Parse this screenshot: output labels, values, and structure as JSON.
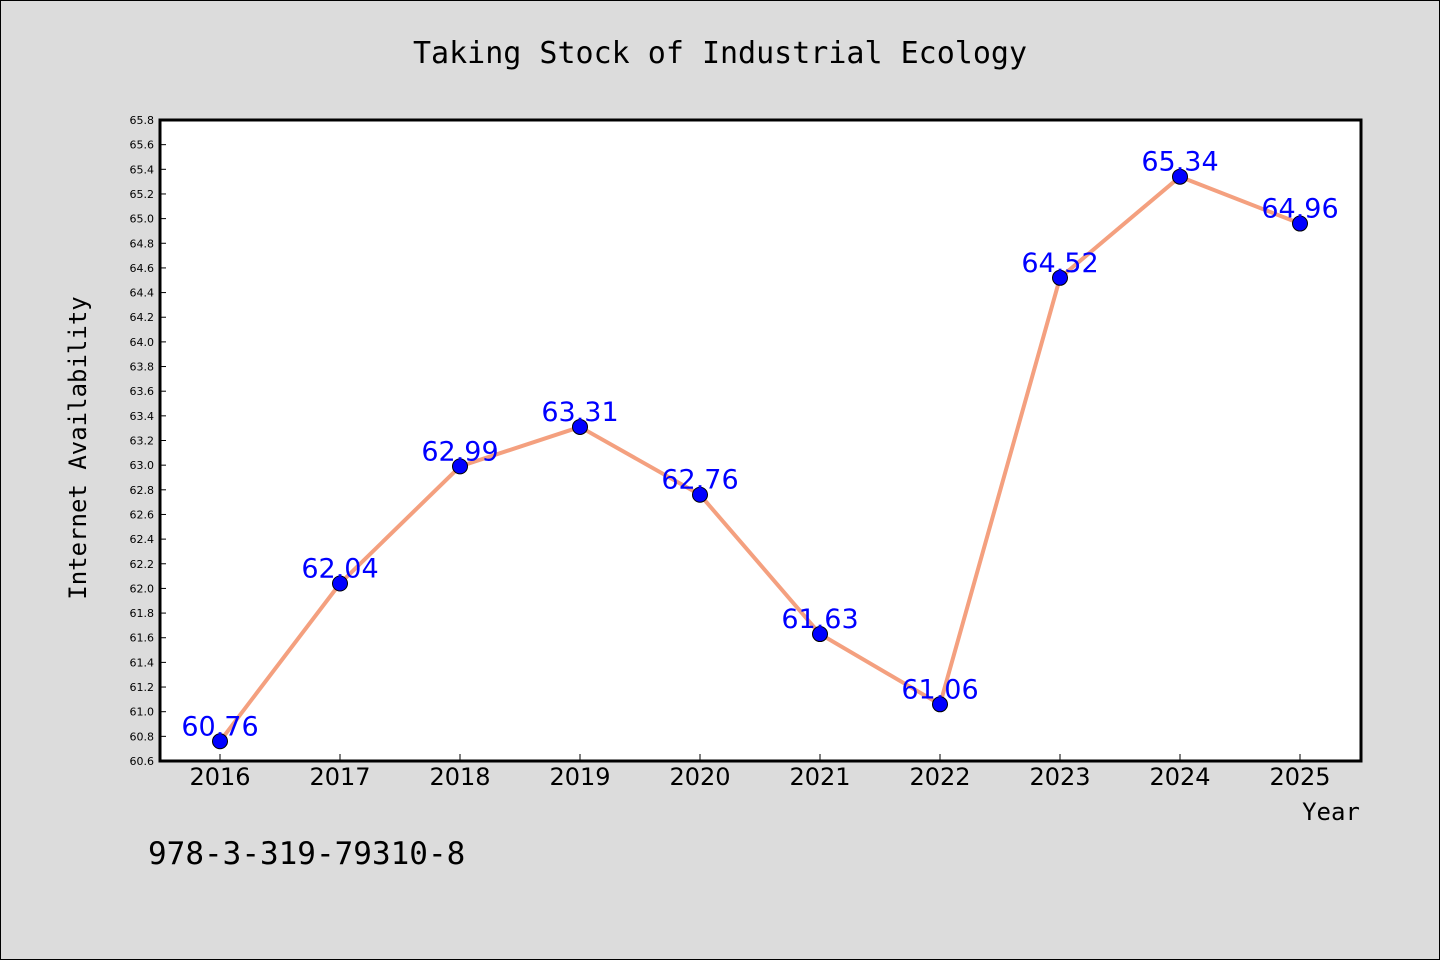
{
  "chart_data": {
    "type": "line",
    "title": "Taking Stock of Industrial Ecology",
    "xlabel": "Year",
    "ylabel": "Internet Availability",
    "categories": [
      "2016",
      "2017",
      "2018",
      "2019",
      "2020",
      "2021",
      "2022",
      "2023",
      "2024",
      "2025"
    ],
    "series": [
      {
        "values": [
          60.76,
          62.04,
          62.99,
          63.31,
          62.76,
          61.63,
          61.06,
          64.52,
          65.34,
          64.96
        ]
      }
    ],
    "data_labels": [
      "60.76",
      "62.04",
      "62.99",
      "63.31",
      "62.76",
      "61.63",
      "61.06",
      "64.52",
      "65.34",
      "64.96"
    ],
    "ylim": [
      60.6,
      65.8
    ],
    "ytick_step": 0.2,
    "grid": false,
    "line_color": "#f4a07f",
    "marker_color": "#0000ff",
    "label_color": "#0000ff",
    "background_color": "#dcdcdc",
    "plot_background": "#ffffff"
  },
  "footer": {
    "text": "978-3-319-79310-8"
  }
}
